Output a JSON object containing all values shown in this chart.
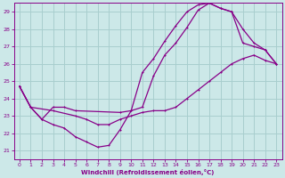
{
  "xlabel": "Windchill (Refroidissement éolien,°C)",
  "xlim": [
    -0.5,
    23.5
  ],
  "ylim": [
    20.5,
    29.5
  ],
  "xticks": [
    0,
    1,
    2,
    3,
    4,
    5,
    6,
    7,
    8,
    9,
    10,
    11,
    12,
    13,
    14,
    15,
    16,
    17,
    18,
    19,
    20,
    21,
    22,
    23
  ],
  "yticks": [
    21,
    22,
    23,
    24,
    25,
    26,
    27,
    28,
    29
  ],
  "background_color": "#cce8e8",
  "grid_color": "#a8cece",
  "line_color": "#880088",
  "line1_x": [
    0,
    1,
    2,
    3,
    4,
    5,
    6,
    7,
    8,
    9,
    10,
    11,
    12,
    13,
    14,
    15,
    16,
    17,
    18,
    19,
    20,
    21,
    22,
    23
  ],
  "line1_y": [
    24.7,
    23.5,
    22.8,
    22.5,
    22.3,
    21.8,
    21.5,
    21.2,
    21.3,
    22.2,
    23.3,
    25.5,
    26.3,
    27.3,
    28.2,
    29.0,
    29.4,
    29.5,
    29.2,
    29.0,
    28.0,
    27.2,
    26.8,
    26.0
  ],
  "line2_x": [
    0,
    1,
    2,
    3,
    4,
    5,
    9,
    10,
    11,
    12,
    13,
    14,
    15,
    16,
    17,
    18,
    19,
    20,
    21,
    22,
    23
  ],
  "line2_y": [
    24.7,
    23.5,
    22.8,
    23.5,
    23.5,
    23.3,
    23.2,
    23.3,
    23.5,
    25.3,
    26.5,
    27.2,
    28.1,
    29.1,
    29.5,
    29.2,
    29.0,
    27.2,
    27.0,
    26.8,
    26.0
  ],
  "line3_x": [
    0,
    1,
    3,
    5,
    6,
    7,
    8,
    9,
    10,
    11,
    12,
    13,
    14,
    15,
    16,
    17,
    18,
    19,
    20,
    21,
    22,
    23
  ],
  "line3_y": [
    24.7,
    23.5,
    23.3,
    23.0,
    22.8,
    22.5,
    22.5,
    22.8,
    23.0,
    23.2,
    23.3,
    23.3,
    23.5,
    24.0,
    24.5,
    25.0,
    25.5,
    26.0,
    26.3,
    26.5,
    26.2,
    26.0
  ]
}
